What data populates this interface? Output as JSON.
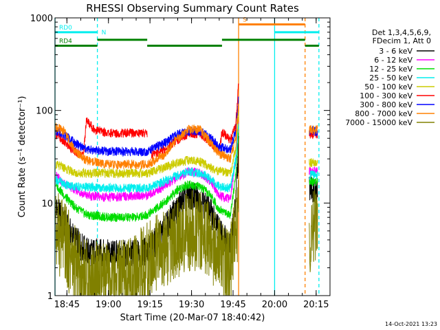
{
  "page": {
    "date_stamp": "14-Oct-2021 13:23"
  },
  "chart_data": {
    "type": "line",
    "title": "RHESSI Observing Summary Count Rates",
    "xlabel": "Start Time (20-Mar-07 18:40:42)",
    "ylabel": "Count Rate (s⁻¹ detector⁻¹)",
    "y_scale": "log",
    "ylim": [
      1,
      1000
    ],
    "xlim": [
      "18:40:42",
      "20:20:00"
    ],
    "x_ticks": [
      "18:45",
      "19:00",
      "19:15",
      "19:30",
      "19:45",
      "20:00",
      "20:15"
    ],
    "y_ticks": [
      "1",
      "10",
      "100",
      "1000"
    ],
    "legend_header": [
      "Det 1,3,4,5,6,9,",
      "FDecim 1, Att 0"
    ],
    "legend_position": "right",
    "series": [
      {
        "name": "3 - 6 keV",
        "color": "#000000",
        "points": [
          [
            "18:40:42",
            null
          ],
          [
            "18:41:00",
            9
          ],
          [
            "18:44:00",
            6
          ],
          [
            "18:48:00",
            4
          ],
          [
            "18:52:00",
            3
          ],
          [
            "19:00:00",
            2.8
          ],
          [
            "19:08:00",
            2.8
          ],
          [
            "19:13:00",
            3.0
          ],
          [
            "19:16:00",
            3.5
          ],
          [
            "19:20:00",
            5
          ],
          [
            "19:25:00",
            9
          ],
          [
            "19:29:00",
            12
          ],
          [
            "19:33:00",
            11
          ],
          [
            "19:37:00",
            8
          ],
          [
            "19:40:00",
            5
          ],
          [
            "19:44:00",
            3.5
          ],
          [
            "19:46:00",
            10
          ],
          [
            "19:47:00",
            40
          ],
          [
            "20:12:00",
            null
          ],
          [
            "20:12:30",
            15
          ],
          [
            "20:15:30",
            14
          ]
        ]
      },
      {
        "name": "6 - 12 keV",
        "color": "#ff00ff",
        "points": [
          [
            "18:41:00",
            20
          ],
          [
            "18:44:00",
            16
          ],
          [
            "18:48:00",
            14
          ],
          [
            "18:52:00",
            12
          ],
          [
            "19:00:00",
            11.5
          ],
          [
            "19:10:00",
            12
          ],
          [
            "19:14:00",
            12
          ],
          [
            "19:20:00",
            15
          ],
          [
            "19:25:00",
            19
          ],
          [
            "19:29:00",
            22
          ],
          [
            "19:33:00",
            21
          ],
          [
            "19:37:00",
            17
          ],
          [
            "19:40:00",
            12
          ],
          [
            "19:44:00",
            11
          ],
          [
            "19:46:00",
            30
          ],
          [
            "19:47:00",
            80
          ],
          [
            "20:12:00",
            null
          ],
          [
            "20:12:30",
            22
          ],
          [
            "20:15:30",
            22
          ]
        ]
      },
      {
        "name": "12 - 25 keV",
        "color": "#00dd00",
        "points": [
          [
            "18:41:00",
            16
          ],
          [
            "18:44:00",
            12
          ],
          [
            "18:48:00",
            9
          ],
          [
            "18:52:00",
            7.5
          ],
          [
            "19:00:00",
            7
          ],
          [
            "19:10:00",
            7
          ],
          [
            "19:14:00",
            7.5
          ],
          [
            "19:20:00",
            10
          ],
          [
            "19:25:00",
            14
          ],
          [
            "19:29:00",
            16
          ],
          [
            "19:33:00",
            15
          ],
          [
            "19:37:00",
            12
          ],
          [
            "19:40:00",
            8.5
          ],
          [
            "19:44:00",
            7.5
          ],
          [
            "19:46:00",
            20
          ],
          [
            "19:47:00",
            60
          ],
          [
            "20:12:00",
            null
          ],
          [
            "20:12:30",
            17
          ],
          [
            "20:15:30",
            17
          ]
        ]
      },
      {
        "name": "25 - 50 keV",
        "color": "#00eeee",
        "points": [
          [
            "18:41:00",
            18
          ],
          [
            "18:44:00",
            16
          ],
          [
            "18:48:00",
            15
          ],
          [
            "19:00:00",
            14.5
          ],
          [
            "19:14:00",
            14.5
          ],
          [
            "19:20:00",
            17
          ],
          [
            "19:25:00",
            20
          ],
          [
            "19:29:00",
            22
          ],
          [
            "19:33:00",
            21
          ],
          [
            "19:37:00",
            18
          ],
          [
            "19:40:00",
            15
          ],
          [
            "19:44:00",
            14.5
          ],
          [
            "19:46:00",
            30
          ],
          [
            "19:47:00",
            70
          ],
          [
            "20:12:00",
            null
          ],
          [
            "20:12:30",
            20
          ],
          [
            "20:15:30",
            20
          ]
        ]
      },
      {
        "name": "50 - 100 keV",
        "color": "#cccc00",
        "points": [
          [
            "18:41:00",
            26
          ],
          [
            "18:44:00",
            24
          ],
          [
            "18:48:00",
            21
          ],
          [
            "19:00:00",
            21
          ],
          [
            "19:14:00",
            21
          ],
          [
            "19:20:00",
            24
          ],
          [
            "19:25:00",
            27
          ],
          [
            "19:29:00",
            29
          ],
          [
            "19:33:00",
            28
          ],
          [
            "19:37:00",
            24
          ],
          [
            "19:40:00",
            22
          ],
          [
            "19:44:00",
            21
          ],
          [
            "19:46:00",
            40
          ],
          [
            "19:47:00",
            90
          ],
          [
            "20:12:00",
            null
          ],
          [
            "20:12:30",
            27
          ],
          [
            "20:15:30",
            27
          ]
        ]
      },
      {
        "name": "100 - 300 keV",
        "color": "#ff0000",
        "points": [
          [
            "18:41:00",
            56
          ],
          [
            "18:44:00",
            45
          ],
          [
            "18:48:00",
            36
          ],
          [
            "18:51:00",
            33
          ],
          [
            "18:52:00",
            79
          ],
          [
            "18:55:00",
            62
          ],
          [
            "19:00:00",
            57
          ],
          [
            "19:14:00",
            57
          ],
          [
            "19:15:00",
            null
          ],
          [
            "19:15:30",
            33
          ],
          [
            "19:20:00",
            38
          ],
          [
            "19:25:00",
            48
          ],
          [
            "19:29:00",
            56
          ],
          [
            "19:33:00",
            56
          ],
          [
            "19:37:00",
            45
          ],
          [
            "19:40:00",
            35
          ],
          [
            "19:41:00",
            59
          ],
          [
            "19:44:00",
            48
          ],
          [
            "19:46:00",
            70
          ],
          [
            "19:47:00",
            200
          ],
          [
            "20:12:00",
            null
          ],
          [
            "20:12:30",
            55
          ],
          [
            "20:15:30",
            55
          ]
        ]
      },
      {
        "name": "300 - 800 keV",
        "color": "#0000ff",
        "points": [
          [
            "18:41:00",
            60
          ],
          [
            "18:44:00",
            55
          ],
          [
            "18:48:00",
            44
          ],
          [
            "18:52:00",
            38
          ],
          [
            "19:00:00",
            36
          ],
          [
            "19:14:00",
            36
          ],
          [
            "19:20:00",
            44
          ],
          [
            "19:25:00",
            55
          ],
          [
            "19:29:00",
            60
          ],
          [
            "19:33:00",
            60
          ],
          [
            "19:37:00",
            50
          ],
          [
            "19:40:00",
            40
          ],
          [
            "19:44:00",
            38
          ],
          [
            "19:46:00",
            60
          ],
          [
            "19:47:00",
            140
          ],
          [
            "20:12:00",
            null
          ],
          [
            "20:12:30",
            60
          ],
          [
            "20:15:30",
            60
          ]
        ]
      },
      {
        "name": "800 - 7000 keV",
        "color": "#ff8000",
        "points": [
          [
            "18:41:00",
            66
          ],
          [
            "18:44:00",
            60
          ],
          [
            "18:48:00",
            36
          ],
          [
            "18:52:00",
            29
          ],
          [
            "19:00:00",
            26
          ],
          [
            "19:14:00",
            26
          ],
          [
            "19:20:00",
            33
          ],
          [
            "19:25:00",
            50
          ],
          [
            "19:29:00",
            63
          ],
          [
            "19:33:00",
            62
          ],
          [
            "19:37:00",
            44
          ],
          [
            "19:40:00",
            34
          ],
          [
            "19:44:00",
            30
          ],
          [
            "19:46:00",
            50
          ],
          [
            "19:47:00",
            120
          ],
          [
            "20:12:00",
            null
          ],
          [
            "20:12:30",
            62
          ],
          [
            "20:15:30",
            62
          ]
        ]
      },
      {
        "name": "7000 - 15000 keV",
        "color": "#808000",
        "points": [
          [
            "18:41:00",
            5
          ],
          [
            "18:44:00",
            4
          ],
          [
            "18:48:00",
            2
          ],
          [
            "18:52:00",
            1.5
          ],
          [
            "19:00:00",
            1.3
          ],
          [
            "19:08:00",
            1.5
          ],
          [
            "19:12:00",
            2
          ],
          [
            "19:16:00",
            2.5
          ],
          [
            "19:20:00",
            3
          ],
          [
            "19:25:00",
            4
          ],
          [
            "19:29:00",
            5
          ],
          [
            "19:33:00",
            5
          ],
          [
            "19:37:00",
            4
          ],
          [
            "19:40:00",
            2.5
          ],
          [
            "19:44:00",
            2
          ],
          [
            "19:46:00",
            5
          ],
          [
            "19:47:00",
            8
          ],
          [
            "20:12:00",
            null
          ],
          [
            "20:12:30",
            5
          ],
          [
            "20:15:30",
            5
          ]
        ]
      }
    ],
    "state_bars": [
      {
        "label": "RD0",
        "color": "#00eeee",
        "level": 700,
        "segments": [
          [
            "18:40:42",
            "18:56:00"
          ],
          [
            "20:00:00",
            "20:16:00"
          ]
        ]
      },
      {
        "label": "RD4",
        "color": "#008000",
        "level": 500,
        "segments": [
          [
            "18:40:42",
            "18:56:00"
          ]
        ]
      },
      {
        "label": "",
        "color": "#008000",
        "level": 580,
        "segments": [
          [
            "18:56:00",
            "19:14:00"
          ],
          [
            "19:41:00",
            "20:11:00"
          ]
        ]
      },
      {
        "label": "",
        "color": "#008000",
        "level": 500,
        "segments": [
          [
            "19:14:00",
            "19:41:00"
          ],
          [
            "20:11:00",
            "20:16:00"
          ]
        ]
      },
      {
        "label": "S",
        "color": "#ff8000",
        "level": 850,
        "segments": [
          [
            "19:47:00",
            "20:11:00"
          ]
        ]
      }
    ],
    "state_markers": [
      {
        "label": "N",
        "color": "#00eeee",
        "time": "18:56:00"
      }
    ],
    "vlines": [
      {
        "time": "18:40:42",
        "color": "#00eeee",
        "style": "solid"
      },
      {
        "time": "18:56:00",
        "color": "#00eeee",
        "style": "dashed"
      },
      {
        "time": "19:47:00",
        "color": "#ff8000",
        "style": "solid"
      },
      {
        "time": "20:00:00",
        "color": "#00eeee",
        "style": "solid"
      },
      {
        "time": "20:11:00",
        "color": "#ff8000",
        "style": "dashed"
      },
      {
        "time": "20:16:00",
        "color": "#00eeee",
        "style": "dashed"
      }
    ]
  }
}
